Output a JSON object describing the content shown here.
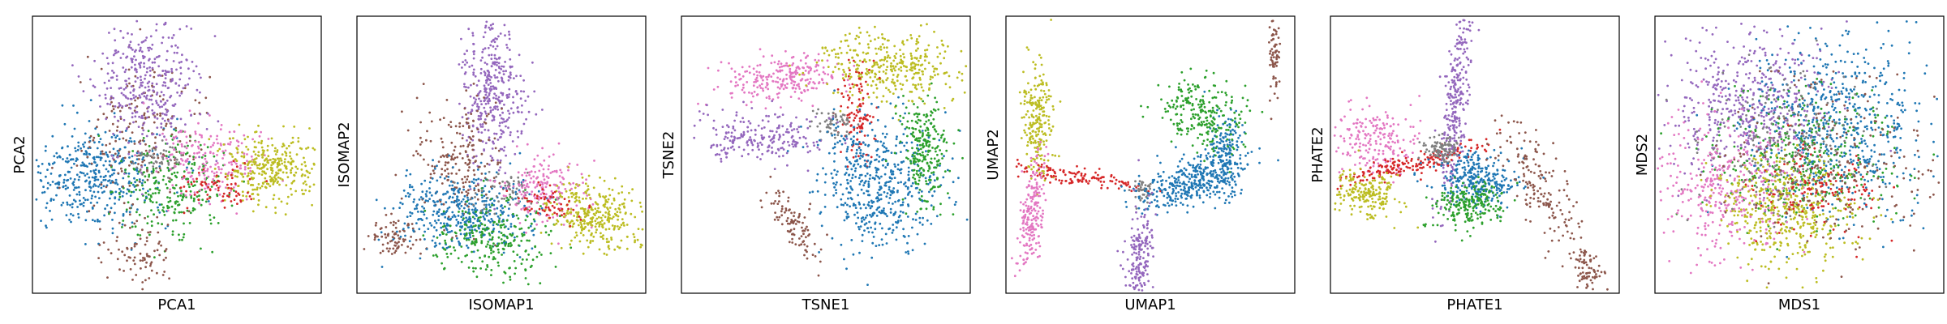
{
  "chart_data": [
    {
      "type": "scatter",
      "xlabel": "PCA1",
      "ylabel": "PCA2"
    },
    {
      "type": "scatter",
      "xlabel": "ISOMAP1",
      "ylabel": "ISOMAP2"
    },
    {
      "type": "scatter",
      "xlabel": "TSNE1",
      "ylabel": "TSNE2"
    },
    {
      "type": "scatter",
      "xlabel": "UMAP1",
      "ylabel": "UMAP2"
    },
    {
      "type": "scatter",
      "xlabel": "PHATE1",
      "ylabel": "PHATE2"
    },
    {
      "type": "scatter",
      "xlabel": "MDS1",
      "ylabel": "MDS2"
    }
  ],
  "colors": {
    "blue": "#1f77b4",
    "green": "#2ca02c",
    "red": "#d62728",
    "purple": "#9467bd",
    "brown": "#8c564b",
    "pink": "#e377c2",
    "gray": "#7f7f7f",
    "olive": "#bcbd22"
  }
}
